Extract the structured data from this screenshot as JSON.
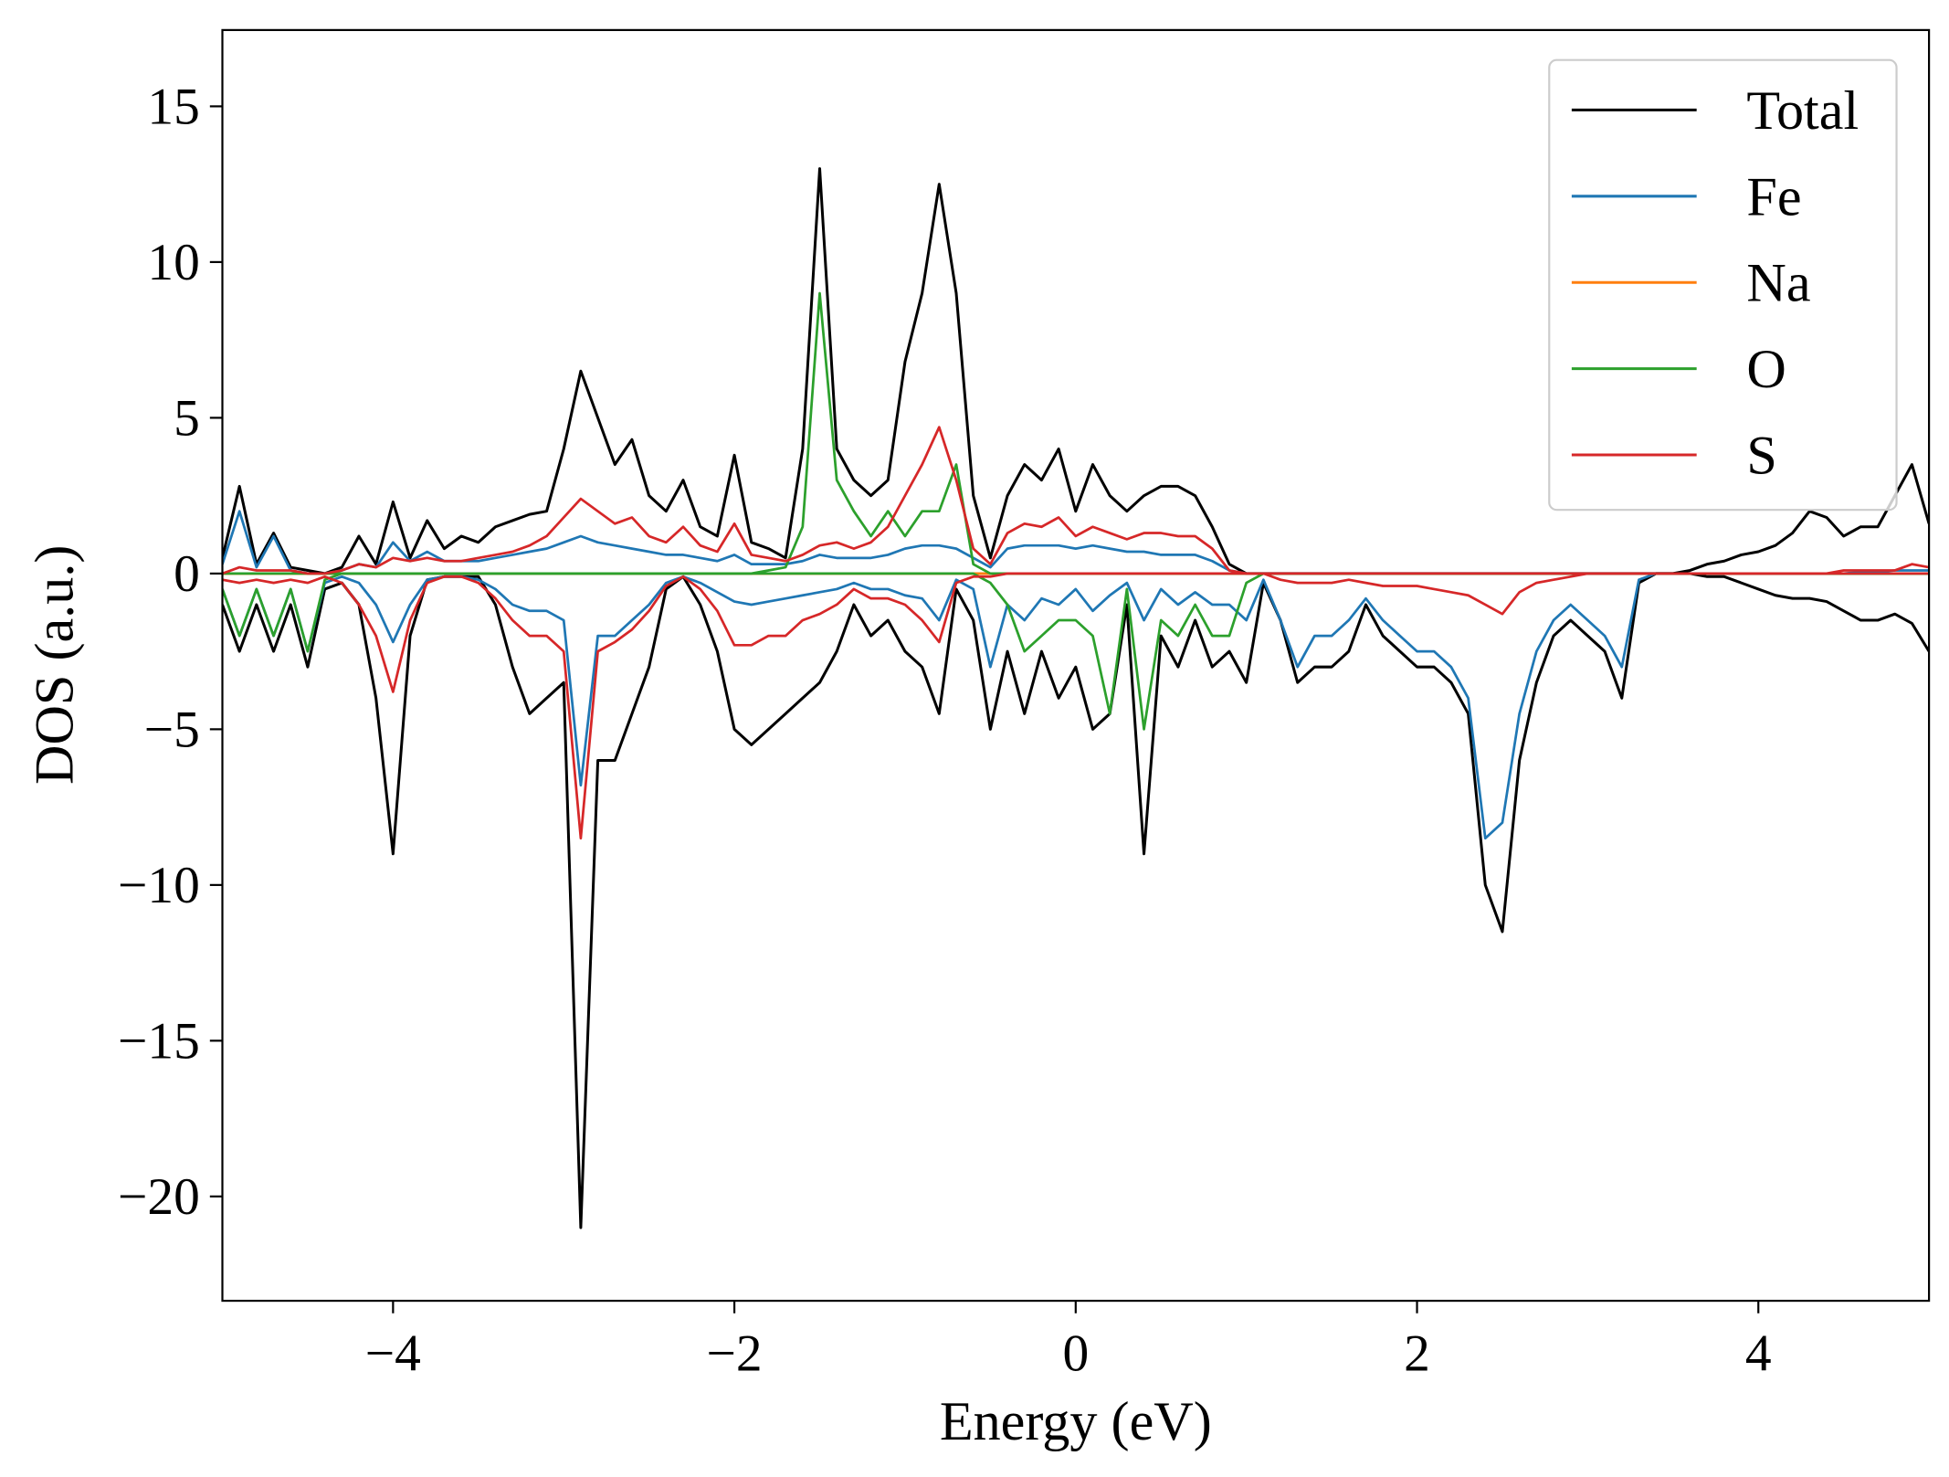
{
  "chart_data": {
    "type": "line",
    "xlabel": "Energy (eV)",
    "ylabel": "DOS (a.u.)",
    "xlim": [
      -5,
      5
    ],
    "ylim": [
      -23.35,
      17.45
    ],
    "xticks": [
      {
        "value": -4,
        "label": "−4"
      },
      {
        "value": -2,
        "label": "−2"
      },
      0,
      2,
      4
    ],
    "yticks": [
      {
        "value": -20,
        "label": "−20"
      },
      {
        "value": -15,
        "label": "−15"
      },
      {
        "value": -10,
        "label": "−10"
      },
      {
        "value": -5,
        "label": "−5"
      },
      0,
      5,
      10,
      15
    ],
    "grid": false,
    "legend": "upper right",
    "x": [
      -5.0,
      -4.9,
      -4.8,
      -4.7,
      -4.6,
      -4.5,
      -4.4,
      -4.3,
      -4.2,
      -4.1,
      -4.0,
      -3.9,
      -3.8,
      -3.7,
      -3.6,
      -3.5,
      -3.4,
      -3.3,
      -3.2,
      -3.1,
      -3.0,
      -2.9,
      -2.8,
      -2.7,
      -2.6,
      -2.5,
      -2.4,
      -2.3,
      -2.2,
      -2.1,
      -2.0,
      -1.9,
      -1.8,
      -1.7,
      -1.6,
      -1.5,
      -1.4,
      -1.3,
      -1.2,
      -1.1,
      -1.0,
      -0.9,
      -0.8,
      -0.7,
      -0.6,
      -0.5,
      -0.4,
      -0.3,
      -0.2,
      -0.1,
      0.0,
      0.1,
      0.2,
      0.3,
      0.4,
      0.5,
      0.6,
      0.7,
      0.8,
      0.9,
      1.0,
      1.1,
      1.2,
      1.3,
      1.4,
      1.5,
      1.6,
      1.7,
      1.8,
      1.9,
      2.0,
      2.1,
      2.2,
      2.3,
      2.4,
      2.5,
      2.6,
      2.7,
      2.8,
      2.9,
      3.0,
      3.1,
      3.2,
      3.3,
      3.4,
      3.5,
      3.6,
      3.7,
      3.8,
      3.9,
      4.0,
      4.1,
      4.2,
      4.3,
      4.4,
      4.5,
      4.6,
      4.7,
      4.8,
      4.9,
      5.0
    ],
    "series": [
      {
        "name": "Total",
        "color": "#000000",
        "values": [
          0.5,
          2.8,
          0.3,
          1.3,
          0.2,
          0.1,
          0,
          0.2,
          1.2,
          0.3,
          2.3,
          0.5,
          1.7,
          0.8,
          1.2,
          1.0,
          1.5,
          1.7,
          1.9,
          2.0,
          4.0,
          6.5,
          5.0,
          3.5,
          4.3,
          2.5,
          2.0,
          3.0,
          1.5,
          1.2,
          3.8,
          1.0,
          0.8,
          0.5,
          4.0,
          13,
          4.0,
          3.0,
          2.5,
          3.0,
          6.8,
          9.0,
          12.5,
          9.0,
          2.5,
          0.5,
          2.5,
          3.5,
          3.0,
          4.0,
          2.0,
          3.5,
          2.5,
          2.0,
          2.5,
          2.8,
          2.8,
          2.5,
          1.5,
          0.3,
          0,
          0,
          0,
          0,
          0,
          0,
          0,
          0,
          0,
          0,
          0,
          0,
          0,
          0,
          0,
          0,
          0,
          0,
          0,
          0,
          0,
          0,
          0,
          0,
          0,
          0,
          0.1,
          0.3,
          0.4,
          0.6,
          0.7,
          0.9,
          1.3,
          2.0,
          1.8,
          1.2,
          1.5,
          1.5,
          2.5,
          3.5,
          1.6
        ],
        "values_down": [
          -1.0,
          -2.5,
          -1.0,
          -2.5,
          -1.0,
          -3.0,
          -0.5,
          -0.3,
          -1.0,
          -4.0,
          -9.0,
          -2.0,
          -0.2,
          -0.1,
          -0.1,
          -0.1,
          -1.0,
          -3.0,
          -4.5,
          -4.0,
          -3.5,
          -21,
          -6.0,
          -6.0,
          -4.5,
          -3.0,
          -0.5,
          -0.1,
          -1.0,
          -2.5,
          -5.0,
          -5.5,
          -5.0,
          -4.5,
          -4.0,
          -3.5,
          -2.5,
          -1.0,
          -2.0,
          -1.5,
          -2.5,
          -3.0,
          -4.5,
          -0.5,
          -1.5,
          -5.0,
          -2.5,
          -4.5,
          -2.5,
          -4.0,
          -3.0,
          -5.0,
          -4.5,
          -1.0,
          -9.0,
          -2.0,
          -3.0,
          -1.5,
          -3.0,
          -2.5,
          -3.5,
          -0.3,
          -1.5,
          -3.5,
          -3.0,
          -3.0,
          -2.5,
          -1.0,
          -2.0,
          -2.5,
          -3.0,
          -3.0,
          -3.5,
          -4.5,
          -10,
          -11.5,
          -6.0,
          -3.5,
          -2.0,
          -1.5,
          -2.0,
          -2.5,
          -4.0,
          -0.3,
          0,
          0,
          0,
          -0.1,
          -0.1,
          -0.3,
          -0.5,
          -0.7,
          -0.8,
          -0.8,
          -0.9,
          -1.2,
          -1.5,
          -1.5,
          -1.3,
          -1.6,
          -2.5
        ]
      },
      {
        "name": "Fe",
        "color": "#1f77b4",
        "values": [
          0.3,
          2.0,
          0.2,
          1.2,
          0.1,
          0,
          0,
          0.1,
          0.3,
          0.2,
          1.0,
          0.4,
          0.7,
          0.4,
          0.4,
          0.4,
          0.5,
          0.6,
          0.7,
          0.8,
          1.0,
          1.2,
          1.0,
          0.9,
          0.8,
          0.7,
          0.6,
          0.6,
          0.5,
          0.4,
          0.6,
          0.3,
          0.3,
          0.3,
          0.4,
          0.6,
          0.5,
          0.5,
          0.5,
          0.6,
          0.8,
          0.9,
          0.9,
          0.8,
          0.5,
          0.2,
          0.8,
          0.9,
          0.9,
          0.9,
          0.8,
          0.9,
          0.8,
          0.7,
          0.7,
          0.6,
          0.6,
          0.6,
          0.4,
          0.1,
          0,
          0,
          0,
          0,
          0,
          0,
          0,
          0,
          0,
          0,
          0,
          0,
          0,
          0,
          0,
          0,
          0,
          0,
          0,
          0,
          0,
          0,
          0,
          0,
          0,
          0,
          0,
          0,
          0,
          0,
          0,
          0,
          0,
          0,
          0,
          0,
          0.05,
          0.05,
          0.1,
          0.1,
          0.1
        ],
        "values_down": [
          -0.5,
          -2.0,
          -0.5,
          -2.0,
          -0.5,
          -2.5,
          -0.3,
          -0.1,
          -0.3,
          -1.0,
          -2.2,
          -1.0,
          -0.2,
          -0.1,
          -0.1,
          -0.2,
          -0.5,
          -1.0,
          -1.2,
          -1.2,
          -1.5,
          -6.8,
          -2.0,
          -2.0,
          -1.5,
          -1.0,
          -0.3,
          -0.1,
          -0.3,
          -0.6,
          -0.9,
          -1.0,
          -0.9,
          -0.8,
          -0.7,
          -0.6,
          -0.5,
          -0.3,
          -0.5,
          -0.5,
          -0.7,
          -0.8,
          -1.5,
          -0.2,
          -0.5,
          -3.0,
          -1.0,
          -1.5,
          -0.8,
          -1.0,
          -0.5,
          -1.2,
          -0.7,
          -0.3,
          -1.5,
          -0.5,
          -1.0,
          -0.6,
          -1.0,
          -1.0,
          -1.5,
          -0.2,
          -1.5,
          -3.0,
          -2.0,
          -2.0,
          -1.5,
          -0.8,
          -1.5,
          -2.0,
          -2.5,
          -2.5,
          -3.0,
          -4.0,
          -8.5,
          -8.0,
          -4.5,
          -2.5,
          -1.5,
          -1.0,
          -1.5,
          -2.0,
          -3.0,
          -0.2,
          0,
          0,
          0,
          0,
          0,
          0,
          0,
          0,
          0,
          0,
          0,
          0,
          0,
          0,
          0,
          0,
          0
        ]
      },
      {
        "name": "Na",
        "color": "#ff7f0e",
        "values": [
          0,
          0,
          0,
          0,
          0,
          0,
          0,
          0,
          0,
          0,
          0,
          0,
          0,
          0,
          0,
          0,
          0,
          0,
          0,
          0,
          0,
          0,
          0,
          0,
          0,
          0,
          0,
          0,
          0,
          0,
          0,
          0,
          0,
          0,
          0,
          0,
          0,
          0,
          0,
          0,
          0,
          0,
          0,
          0,
          0,
          0,
          0,
          0,
          0,
          0,
          0,
          0,
          0,
          0,
          0,
          0,
          0,
          0,
          0,
          0,
          0,
          0,
          0,
          0,
          0,
          0,
          0,
          0,
          0,
          0,
          0,
          0,
          0,
          0,
          0,
          0,
          0,
          0,
          0,
          0,
          0,
          0,
          0,
          0,
          0,
          0,
          0,
          0,
          0,
          0,
          0,
          0,
          0,
          0,
          0,
          0,
          0,
          0,
          0,
          0,
          0
        ],
        "values_down": [
          0,
          0,
          0,
          0,
          0,
          0,
          0,
          0,
          0,
          0,
          0,
          0,
          0,
          0,
          0,
          0,
          0,
          0,
          0,
          0,
          0,
          0,
          0,
          0,
          0,
          0,
          0,
          0,
          0,
          0,
          0,
          0,
          0,
          0,
          0,
          0,
          0,
          0,
          0,
          0,
          0,
          0,
          0,
          0,
          0,
          0,
          0,
          0,
          0,
          0,
          0,
          0,
          0,
          0,
          0,
          0,
          0,
          0,
          0,
          0,
          0,
          0,
          0,
          0,
          0,
          0,
          0,
          0,
          0,
          0,
          0,
          0,
          0,
          0,
          0,
          0,
          0,
          0,
          0,
          0,
          0,
          0,
          0,
          0,
          0,
          0,
          0,
          0,
          0,
          0,
          0,
          0,
          0,
          0,
          0,
          0,
          0,
          0,
          0,
          0,
          0
        ]
      },
      {
        "name": "O",
        "color": "#2ca02c",
        "values": [
          0,
          0,
          0,
          0,
          0,
          0,
          0,
          0,
          0,
          0,
          0,
          0,
          0,
          0,
          0,
          0,
          0,
          0,
          0,
          0,
          0,
          0,
          0,
          0,
          0,
          0,
          0,
          0,
          0,
          0,
          0,
          0,
          0.1,
          0.2,
          1.5,
          9.0,
          3.0,
          2.0,
          1.2,
          2.0,
          1.2,
          2.0,
          2.0,
          3.5,
          0.3,
          0,
          0,
          0,
          0,
          0,
          0,
          0,
          0,
          0,
          0,
          0,
          0,
          0,
          0,
          0,
          0,
          0,
          0,
          0,
          0,
          0,
          0,
          0,
          0,
          0,
          0,
          0,
          0,
          0,
          0,
          0,
          0,
          0,
          0,
          0,
          0,
          0,
          0,
          0,
          0,
          0,
          0,
          0,
          0,
          0,
          0,
          0,
          0,
          0,
          0,
          0,
          0,
          0,
          0,
          0,
          0
        ],
        "values_down": [
          -0.5,
          -2.0,
          -0.5,
          -2.0,
          -0.5,
          -2.5,
          -0.2,
          0,
          0,
          0,
          0,
          0,
          0,
          0,
          0,
          0,
          0,
          0,
          0,
          0,
          0,
          0,
          0,
          0,
          0,
          0,
          0,
          0,
          0,
          0,
          0,
          0,
          0,
          0,
          0,
          0,
          0,
          0,
          0,
          0,
          0,
          0,
          0,
          0,
          0,
          -0.3,
          -1.0,
          -2.5,
          -2.0,
          -1.5,
          -1.5,
          -2.0,
          -4.5,
          -0.5,
          -5.0,
          -1.5,
          -2.0,
          -1.0,
          -2.0,
          -2.0,
          -0.3,
          0,
          0,
          0,
          0,
          0,
          0,
          0,
          0,
          0,
          0,
          0,
          0,
          0,
          0,
          0,
          0,
          0,
          0,
          0,
          0,
          0,
          0,
          0,
          0,
          0,
          0,
          0,
          0,
          0,
          0,
          0,
          0,
          0,
          0,
          0,
          0,
          0,
          0,
          0,
          0
        ]
      },
      {
        "name": "S",
        "color": "#d62728",
        "values": [
          0,
          0.2,
          0.1,
          0.1,
          0.1,
          0,
          0,
          0.1,
          0.3,
          0.2,
          0.5,
          0.4,
          0.5,
          0.4,
          0.4,
          0.5,
          0.6,
          0.7,
          0.9,
          1.2,
          1.8,
          2.4,
          2.0,
          1.6,
          1.8,
          1.2,
          1.0,
          1.5,
          0.9,
          0.7,
          1.6,
          0.6,
          0.5,
          0.4,
          0.6,
          0.9,
          1.0,
          0.8,
          1.0,
          1.5,
          2.5,
          3.5,
          4.7,
          3.0,
          0.8,
          0.3,
          1.3,
          1.6,
          1.5,
          1.8,
          1.2,
          1.5,
          1.3,
          1.1,
          1.3,
          1.3,
          1.2,
          1.2,
          0.8,
          0.1,
          0,
          0,
          0,
          0,
          0,
          0,
          0,
          0,
          0,
          0,
          0,
          0,
          0,
          0,
          0,
          0,
          0,
          0,
          0,
          0,
          0,
          0,
          0,
          0,
          0,
          0,
          0,
          0,
          0,
          0,
          0,
          0,
          0,
          0,
          0,
          0.1,
          0.1,
          0.1,
          0.1,
          0.3,
          0.2
        ],
        "values_down": [
          -0.2,
          -0.3,
          -0.2,
          -0.3,
          -0.2,
          -0.3,
          -0.1,
          -0.3,
          -1.0,
          -2.0,
          -3.8,
          -1.5,
          -0.3,
          -0.1,
          -0.1,
          -0.3,
          -0.8,
          -1.5,
          -2.0,
          -2.0,
          -2.5,
          -8.5,
          -2.5,
          -2.2,
          -1.8,
          -1.2,
          -0.4,
          -0.1,
          -0.5,
          -1.2,
          -2.3,
          -2.3,
          -2.0,
          -2.0,
          -1.5,
          -1.3,
          -1.0,
          -0.5,
          -0.8,
          -0.8,
          -1.0,
          -1.5,
          -2.2,
          -0.3,
          -0.1,
          -0.1,
          0,
          0,
          0,
          0,
          0,
          0,
          0,
          0,
          0,
          0,
          0,
          0,
          0,
          0,
          0,
          0,
          -0.2,
          -0.3,
          -0.3,
          -0.3,
          -0.2,
          -0.3,
          -0.4,
          -0.4,
          -0.4,
          -0.5,
          -0.6,
          -0.7,
          -1.0,
          -1.3,
          -0.6,
          -0.3,
          -0.2,
          -0.1,
          0,
          0,
          0,
          0,
          0,
          0,
          0,
          0,
          0,
          0,
          0,
          0,
          0,
          0,
          0,
          0,
          0,
          0,
          0,
          0,
          0
        ]
      }
    ]
  }
}
